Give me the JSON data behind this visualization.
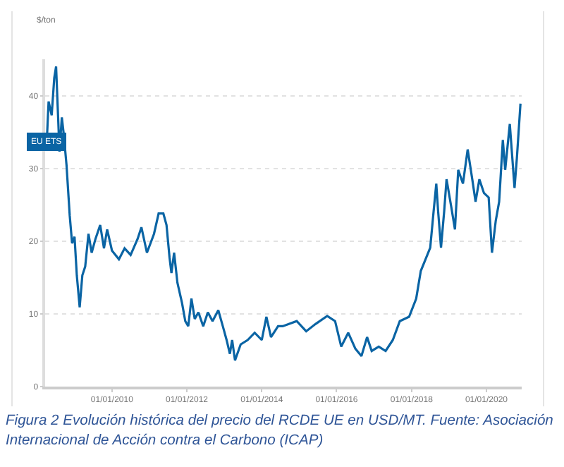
{
  "chart_data": {
    "type": "line",
    "ylabel": "$/ton",
    "annotations": [
      "Figura 2  Evolución histórica del precio del RCDE UE en USD/MT. Fuente: Asociación Internacional de Acción contra el Carbono  (ICAP)"
    ],
    "x": [
      "2008-04-05",
      "2008-04-23",
      "2008-05-23",
      "2008-06-17",
      "2008-07-05",
      "2008-07-24",
      "2008-08-07",
      "2008-08-30",
      "2008-09-17",
      "2008-10-15",
      "2008-11-15",
      "2008-12-08",
      "2009-01-01",
      "2009-01-23",
      "2009-02-20",
      "2009-03-18",
      "2009-04-15",
      "2009-05-17",
      "2009-06-17",
      "2009-07-24",
      "2009-09-08",
      "2009-10-15",
      "2009-11-15",
      "2010-01-01",
      "2010-03-10",
      "2010-05-04",
      "2010-07-02",
      "2010-09-08",
      "2010-10-15",
      "2010-12-08",
      "2011-02-15",
      "2011-04-01",
      "2011-05-17",
      "2011-06-17",
      "2011-07-16",
      "2011-08-04",
      "2011-08-30",
      "2011-10-01",
      "2011-11-15",
      "2011-12-17",
      "2012-01-15",
      "2012-02-15",
      "2012-03-18",
      "2012-04-23",
      "2012-06-09",
      "2012-07-24",
      "2012-09-08",
      "2012-11-03",
      "2012-12-17",
      "2013-01-23",
      "2013-02-24",
      "2013-03-18",
      "2013-04-15",
      "2013-06-09",
      "2013-08-16",
      "2013-10-24",
      "2014-01-01",
      "2014-02-15",
      "2014-04-01",
      "2014-06-09",
      "2014-07-24",
      "2014-12-08",
      "2015-03-10",
      "2015-06-09",
      "2015-10-01",
      "2015-12-17",
      "2016-02-15",
      "2016-04-23",
      "2016-07-02",
      "2016-08-30",
      "2016-10-24",
      "2016-12-08",
      "2017-02-15",
      "2017-04-23",
      "2017-07-02",
      "2017-09-08",
      "2017-12-08",
      "2018-02-15",
      "2018-04-01",
      "2018-05-17",
      "2018-07-02",
      "2018-08-04",
      "2018-08-30",
      "2018-09-17",
      "2018-10-15",
      "2018-11-15",
      "2018-12-08",
      "2019-01-23",
      "2019-02-28",
      "2019-04-01",
      "2019-05-17",
      "2019-07-02",
      "2019-08-16",
      "2019-09-17",
      "2019-10-24",
      "2019-12-08",
      "2020-01-23",
      "2020-02-24",
      "2020-04-01",
      "2020-05-04",
      "2020-06-09",
      "2020-07-02",
      "2020-08-16",
      "2020-09-08",
      "2020-10-01",
      "2020-10-24",
      "2020-11-28"
    ],
    "series": [
      {
        "name": "EU ETS",
        "color": "#0a64a4",
        "values": [
          33.6,
          39.2,
          37.3,
          42.4,
          44,
          37.3,
          32.3,
          37,
          34.8,
          30.4,
          23.5,
          19.7,
          20.6,
          15.3,
          10.9,
          15.3,
          16.5,
          21,
          18.4,
          20.3,
          22.2,
          19,
          21.6,
          18.7,
          17.5,
          19,
          18.1,
          20.3,
          21.9,
          18.4,
          21,
          23.8,
          23.8,
          22.2,
          17.8,
          15.6,
          18.4,
          14.3,
          11.5,
          9,
          8.3,
          12.1,
          9.3,
          10.2,
          8.3,
          10.2,
          9,
          10.5,
          8.3,
          6.4,
          4.5,
          6.4,
          3.6,
          5.8,
          6.4,
          7.4,
          6.4,
          9.6,
          6.8,
          8.3,
          8.3,
          9,
          7.6,
          8.6,
          9.7,
          9,
          5.5,
          7.4,
          5.2,
          4.2,
          6.8,
          4.9,
          5.5,
          4.9,
          6.4,
          9,
          9.6,
          12.1,
          15.9,
          17.5,
          19.1,
          24.1,
          27.9,
          24.1,
          19.1,
          24.1,
          28.5,
          24.7,
          21.6,
          29.8,
          27.9,
          32.6,
          28.5,
          25.4,
          28.5,
          26.6,
          26,
          18.4,
          22.8,
          25.4,
          33.9,
          29.8,
          36.1,
          31.7,
          27.3,
          31.4,
          38.9
        ]
      }
    ],
    "xlim": [
      "2008-03-20",
      "2020-12-10"
    ],
    "xticks": [
      {
        "value": "2010-01-01",
        "label": "01/01/2010"
      },
      {
        "value": "2012-01-01",
        "label": "01/01/2012"
      },
      {
        "value": "2014-01-01",
        "label": "01/01/2014"
      },
      {
        "value": "2016-01-01",
        "label": "01/01/2016"
      },
      {
        "value": "2018-01-01",
        "label": "01/01/2018"
      },
      {
        "value": "2020-01-01",
        "label": "01/01/2020"
      }
    ],
    "ylim": [
      0,
      45
    ],
    "yticks": [
      0,
      10,
      20,
      30,
      40
    ],
    "grid": "y",
    "legend": false,
    "marker": "none",
    "line_style": "solid"
  }
}
